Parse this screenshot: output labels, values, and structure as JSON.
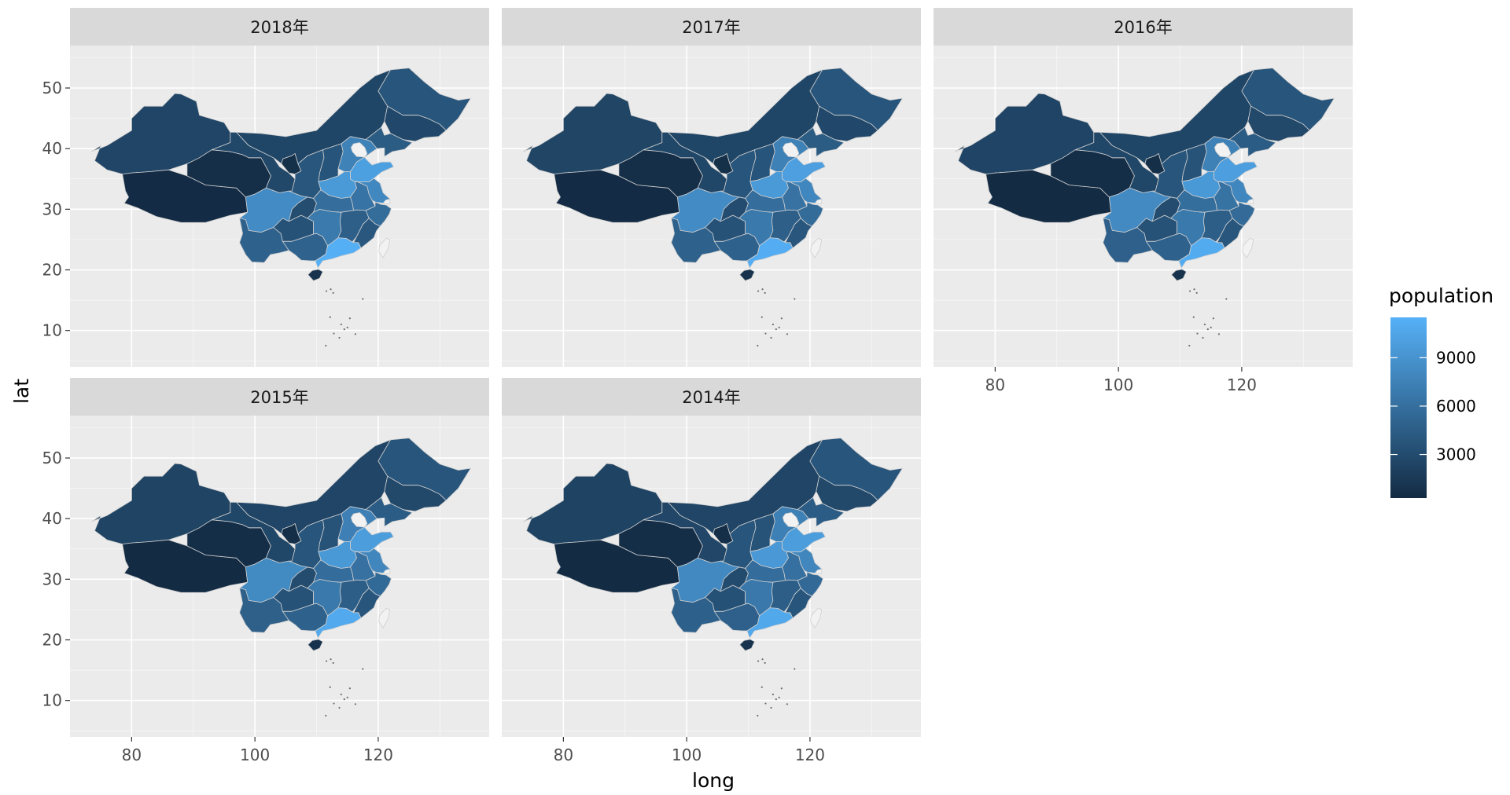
{
  "chart_data": {
    "type": "choropleth-map",
    "xlabel": "long",
    "ylabel": "lat",
    "x_ticks": [
      80,
      100,
      120
    ],
    "y_ticks": [
      10,
      20,
      30,
      40,
      50
    ],
    "xlim": [
      70,
      138
    ],
    "ylim": [
      4,
      57
    ],
    "legend": {
      "title": "population",
      "placement": "right",
      "breaks": [
        3000,
        6000,
        9000
      ],
      "range": [
        300,
        11500
      ],
      "low_color": "#132b43",
      "high_color": "#56b1f7"
    },
    "na_color": "#f2f2f2",
    "facets": [
      {
        "label": "2018年",
        "values": {
          "xinjiang": 2480,
          "xizang": 340,
          "qinghai": 600,
          "gansu": 2640,
          "neimenggu": 2530,
          "ningxia": 690,
          "heilongjiang": 3770,
          "jilin": 2700,
          "liaoning": 4360,
          "hebei": 7560,
          "shandong": 10050,
          "henan": 9600,
          "shanxi": 3720,
          "shaanxi": 3860,
          "sichuan": 8340,
          "chongqing": 3100,
          "yunnan": 4830,
          "guizhou": 3600,
          "guangxi": 4930,
          "guangdong": 11350,
          "hunan": 6900,
          "hubei": 5920,
          "jiangxi": 4650,
          "anhui": 6320,
          "jiangsu": 8050,
          "zhejiang": 5740,
          "fujian": 3940,
          "hainan": 930
        }
      },
      {
        "label": "2017年",
        "values": {
          "xinjiang": 2440,
          "xizang": 340,
          "qinghai": 600,
          "gansu": 2630,
          "neimenggu": 2530,
          "ningxia": 680,
          "heilongjiang": 3790,
          "jilin": 2720,
          "liaoning": 4370,
          "hebei": 7520,
          "shandong": 10010,
          "henan": 9560,
          "shanxi": 3700,
          "shaanxi": 3840,
          "sichuan": 8300,
          "chongqing": 3080,
          "yunnan": 4800,
          "guizhou": 3580,
          "guangxi": 4890,
          "guangdong": 11170,
          "hunan": 6860,
          "hubei": 5900,
          "jiangxi": 4620,
          "anhui": 6250,
          "jiangsu": 8030,
          "zhejiang": 5660,
          "fujian": 3910,
          "hainan": 930
        }
      },
      {
        "label": "2016年",
        "values": {
          "xinjiang": 2400,
          "xizang": 330,
          "qinghai": 590,
          "gansu": 2610,
          "neimenggu": 2520,
          "ningxia": 670,
          "heilongjiang": 3800,
          "jilin": 2730,
          "liaoning": 4380,
          "hebei": 7470,
          "shandong": 9950,
          "henan": 9530,
          "shanxi": 3680,
          "shaanxi": 3810,
          "sichuan": 8260,
          "chongqing": 3050,
          "yunnan": 4770,
          "guizhou": 3560,
          "guangxi": 4840,
          "guangdong": 10990,
          "hunan": 6820,
          "hubei": 5890,
          "jiangxi": 4590,
          "anhui": 6200,
          "jiangsu": 8000,
          "zhejiang": 5590,
          "fujian": 3870,
          "hainan": 920
        }
      },
      {
        "label": "2015年",
        "values": {
          "xinjiang": 2360,
          "xizang": 320,
          "qinghai": 590,
          "gansu": 2600,
          "neimenggu": 2510,
          "ningxia": 670,
          "heilongjiang": 3810,
          "jilin": 2750,
          "liaoning": 4380,
          "hebei": 7420,
          "shandong": 9850,
          "henan": 9480,
          "shanxi": 3660,
          "shaanxi": 3790,
          "sichuan": 8200,
          "chongqing": 3020,
          "yunnan": 4740,
          "guizhou": 3530,
          "guangxi": 4800,
          "guangdong": 10850,
          "hunan": 6780,
          "hubei": 5850,
          "jiangxi": 4570,
          "anhui": 6140,
          "jiangsu": 7980,
          "zhejiang": 5540,
          "fujian": 3840,
          "hainan": 910
        }
      },
      {
        "label": "2014年",
        "values": {
          "xinjiang": 2300,
          "xizang": 320,
          "qinghai": 580,
          "gansu": 2590,
          "neimenggu": 2500,
          "ningxia": 660,
          "heilongjiang": 3830,
          "jilin": 2750,
          "liaoning": 4390,
          "hebei": 7380,
          "shandong": 9790,
          "henan": 9440,
          "shanxi": 3650,
          "shaanxi": 3780,
          "sichuan": 8140,
          "chongqing": 2990,
          "yunnan": 4710,
          "guizhou": 3510,
          "guangxi": 4750,
          "guangdong": 10720,
          "hunan": 6740,
          "hubei": 5820,
          "jiangxi": 4540,
          "anhui": 6080,
          "jiangsu": 7960,
          "zhejiang": 5510,
          "fujian": 3810,
          "hainan": 900
        }
      }
    ]
  }
}
